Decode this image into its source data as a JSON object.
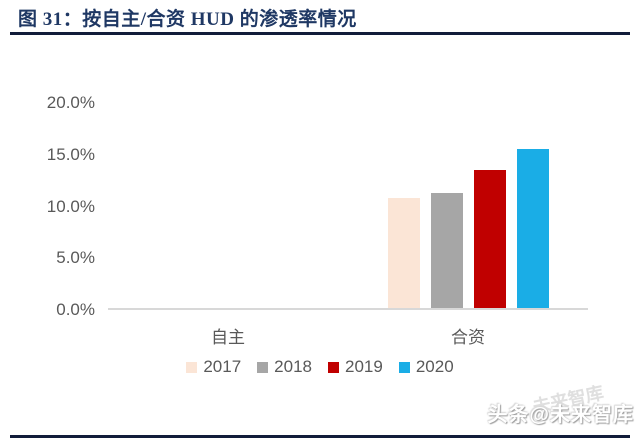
{
  "figure": {
    "title": "图 31：按自主/合资 HUD 的渗透率情况",
    "watermark": "头条@未来智库",
    "watermark_ghost": "未来智库"
  },
  "colors": {
    "title-color": "#1f3864",
    "rule-color": "#121d3a",
    "axis-line-color": "#d8d8d8",
    "text-muted": "#595959"
  },
  "chart_data": {
    "type": "bar",
    "title": "按自主/合资 HUD 的渗透率情况",
    "categories": [
      "自主",
      "合资"
    ],
    "series": [
      {
        "name": "2017",
        "color": "#fbe5d6",
        "values": [
          0,
          10.6
        ]
      },
      {
        "name": "2018",
        "color": "#a6a6a6",
        "values": [
          0,
          11.1
        ]
      },
      {
        "name": "2019",
        "color": "#c00000",
        "values": [
          0,
          13.3
        ]
      },
      {
        "name": "2020",
        "color": "#1aade6",
        "values": [
          0,
          15.4
        ]
      }
    ],
    "value_unit": "%",
    "xlabel": "",
    "ylabel": "",
    "ylim": [
      0,
      20
    ],
    "ytick_values": [
      0,
      5,
      10,
      15,
      20
    ],
    "ytick_labels": [
      "0.0%",
      "5.0%",
      "10.0%",
      "15.0%",
      "20.0%"
    ],
    "grid": false,
    "legend_position": "bottom"
  }
}
